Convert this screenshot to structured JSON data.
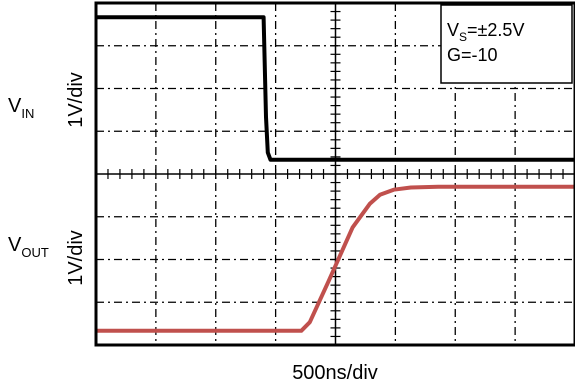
{
  "chart_data": {
    "type": "line",
    "title": "",
    "xlabel": "500ns/div",
    "grid": true,
    "divisions": {
      "x": 8,
      "y": 8
    },
    "annotation": {
      "line1_main": "V",
      "line1_sub": "S",
      "line1_rest": "=±2.5V",
      "line2": "G=-10"
    },
    "panels": [
      {
        "name": "input",
        "label_main": "V",
        "label_sub": "IN",
        "ylabel": "1V/div",
        "color": "#000000",
        "x": [
          0.0,
          4.9,
          4.97,
          5.02,
          5.1,
          14.0
        ],
        "y": [
          2.0,
          2.0,
          0.6,
          0.1,
          0.0,
          0.0
        ],
        "xlim": [
          0.0,
          14.0
        ],
        "ylim": [
          -0.2,
          2.2
        ]
      },
      {
        "name": "output",
        "label_main": "V",
        "label_sub": "OUT",
        "ylabel": "1V/div",
        "color": "#c0504d",
        "x": [
          0.0,
          6.0,
          6.25,
          6.8,
          7.5,
          8.0,
          8.3,
          8.7,
          9.2,
          10.0,
          14.0
        ],
        "y": [
          0.0,
          0.0,
          0.12,
          0.7,
          1.45,
          1.78,
          1.91,
          1.98,
          2.01,
          2.02,
          2.02
        ],
        "xlim": [
          0.0,
          14.0
        ],
        "ylim": [
          -0.2,
          2.2
        ]
      }
    ]
  }
}
